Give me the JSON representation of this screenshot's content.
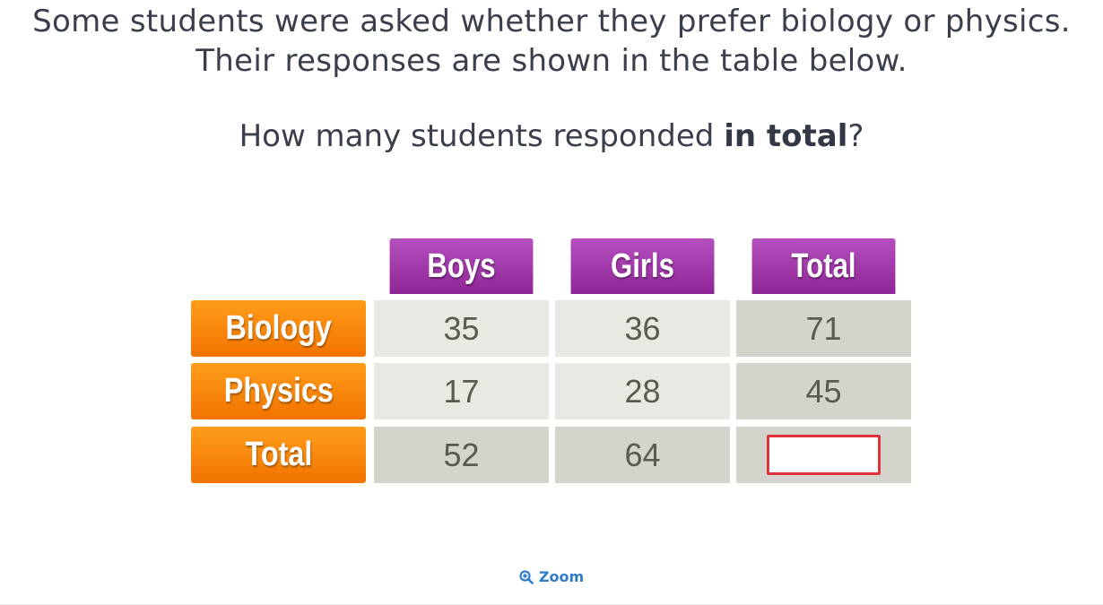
{
  "question": {
    "line1": "Some students were asked whether they prefer biology or physics.",
    "line2": "Their responses are shown in the table below.",
    "ask_pre": "How many students responded ",
    "ask_bold": "in total",
    "ask_post": "?"
  },
  "table": {
    "columns": [
      "Boys",
      "Girls",
      "Total"
    ],
    "rows": [
      {
        "label": "Biology",
        "values": [
          "35",
          "36",
          "71"
        ]
      },
      {
        "label": "Physics",
        "values": [
          "17",
          "28",
          "45"
        ]
      },
      {
        "label": "Total",
        "values": [
          "52",
          "64",
          ""
        ]
      }
    ]
  },
  "zoom": {
    "label": "Zoom",
    "icon": "zoom-in-icon"
  },
  "colors": {
    "header_purple": "#9c30a6",
    "row_orange": "#f7830a",
    "answer_border": "#e0323a",
    "link_blue": "#2f7bc8"
  }
}
